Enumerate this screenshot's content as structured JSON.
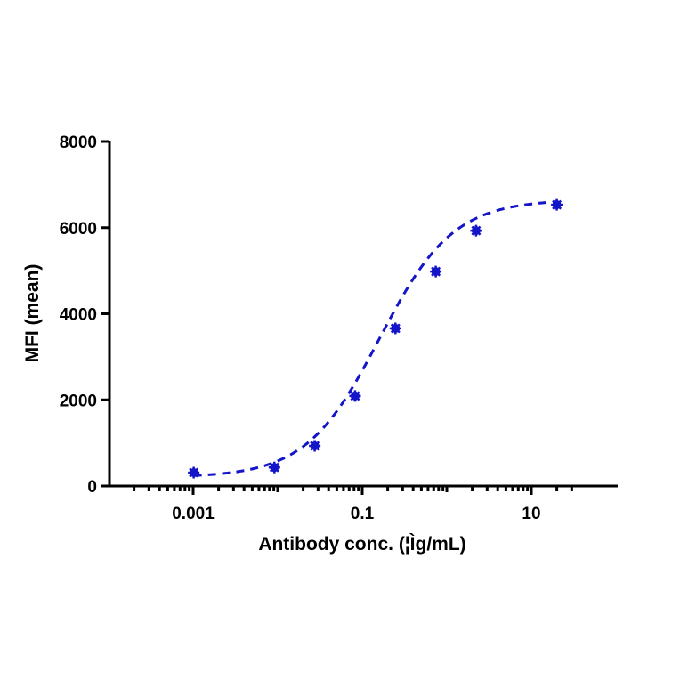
{
  "chart_data": {
    "type": "scatter",
    "title": "",
    "xlabel": "Antibody conc. (¦Ìg/mL)",
    "ylabel": "MFI (mean)",
    "xscale": "log",
    "xlim": [
      0.00015,
      30
    ],
    "ylim": [
      0,
      8000
    ],
    "x_ticks": [
      0.001,
      0.1,
      10
    ],
    "x_tick_labels": [
      "0.001",
      "0.1",
      "10"
    ],
    "y_ticks": [
      0,
      2000,
      4000,
      6000,
      8000
    ],
    "y_tick_labels": [
      "0",
      "2000",
      "4000",
      "6000",
      "8000"
    ],
    "grid": false,
    "legend": null,
    "series": [
      {
        "name": "MFI",
        "color": "#1414c8",
        "marker": "star-filled",
        "fit": "4PL sigmoid, dashed",
        "x": [
          0.001016,
          0.009145,
          0.02743,
          0.0823,
          0.2469,
          0.7407,
          2.222,
          20
        ],
        "values": [
          310,
          430,
          930,
          2090,
          3660,
          4980,
          5930,
          6530
        ]
      }
    ],
    "fit_params": {
      "bottom": 200,
      "top": 6650,
      "ec50": 0.16,
      "hill": 1.0
    }
  },
  "colors": {
    "series": "#1414c8",
    "axis": "#000000",
    "background": "#ffffff"
  }
}
